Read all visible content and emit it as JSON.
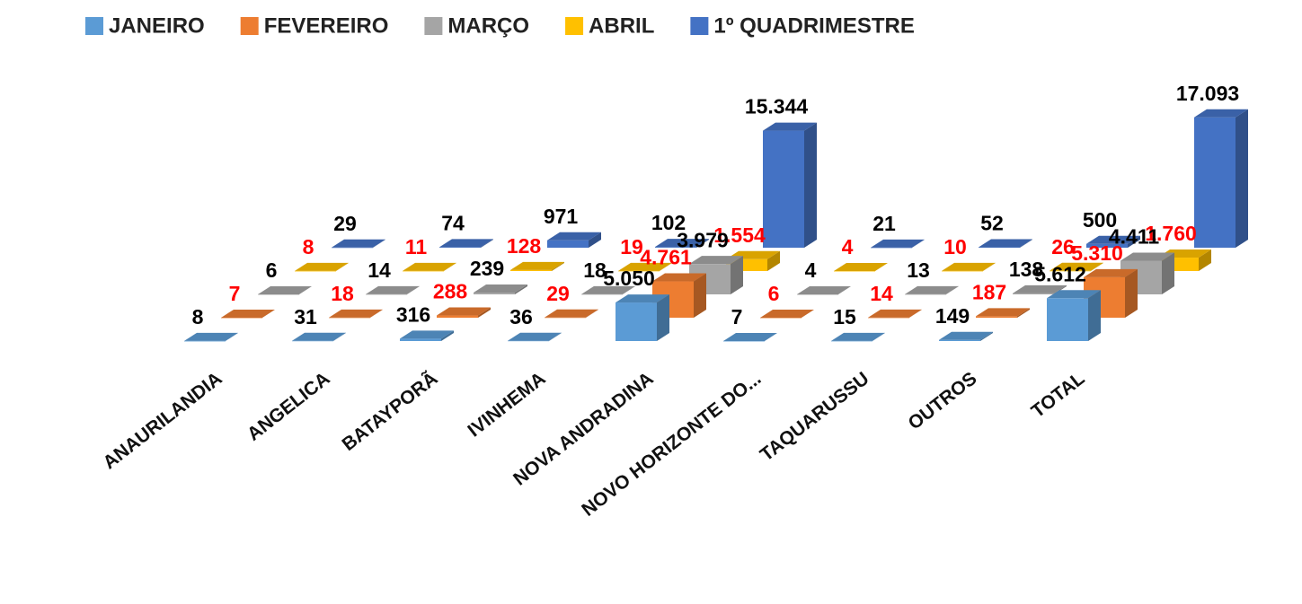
{
  "chart_data": {
    "type": "bar3d",
    "categories": [
      "ANAURILANDIA",
      "ANGELICA",
      "BATAYPORÃ",
      "IVINHEMA",
      "NOVA ANDRADINA",
      "NOVO HORIZONTE DO...",
      "TAQUARUSSU",
      "OUTROS",
      "TOTAL"
    ],
    "series": [
      {
        "name": "JANEIRO",
        "color": "#5b9bd5",
        "label_color": "#000000",
        "values": [
          8,
          31,
          316,
          36,
          5050,
          7,
          15,
          149,
          5612
        ],
        "value_labels": [
          "8",
          "31",
          "316",
          "36",
          "5.050",
          "7",
          "15",
          "149",
          "5.612"
        ]
      },
      {
        "name": "FEVEREIRO",
        "color": "#ed7d31",
        "label_color": "#ff0000",
        "values": [
          7,
          18,
          288,
          29,
          4761,
          6,
          14,
          187,
          5310
        ],
        "value_labels": [
          "7",
          "18",
          "288",
          "29",
          "4.761",
          "6",
          "14",
          "187",
          "5.310"
        ]
      },
      {
        "name": "MARÇO",
        "color": "#a5a5a5",
        "label_color": "#000000",
        "values": [
          6,
          14,
          239,
          18,
          3979,
          4,
          13,
          138,
          4411
        ],
        "value_labels": [
          "6",
          "14",
          "239",
          "18",
          "3.979",
          "4",
          "13",
          "138",
          "4.411"
        ]
      },
      {
        "name": "ABRIL",
        "color": "#ffc000",
        "label_color": "#ff0000",
        "values": [
          8,
          11,
          128,
          19,
          1554,
          4,
          10,
          26,
          1760
        ],
        "value_labels": [
          "8",
          "11",
          "128",
          "19",
          "1.554",
          "4",
          "10",
          "26",
          "1.760"
        ]
      },
      {
        "name": "1º QUADRIMESTRE",
        "color": "#4472c4",
        "label_color": "#000000",
        "values": [
          29,
          74,
          971,
          102,
          15344,
          21,
          52,
          500,
          17093
        ],
        "value_labels": [
          "29",
          "74",
          "971",
          "102",
          "15.344",
          "21",
          "52",
          "500",
          "17.093"
        ]
      }
    ],
    "legend": "top"
  }
}
